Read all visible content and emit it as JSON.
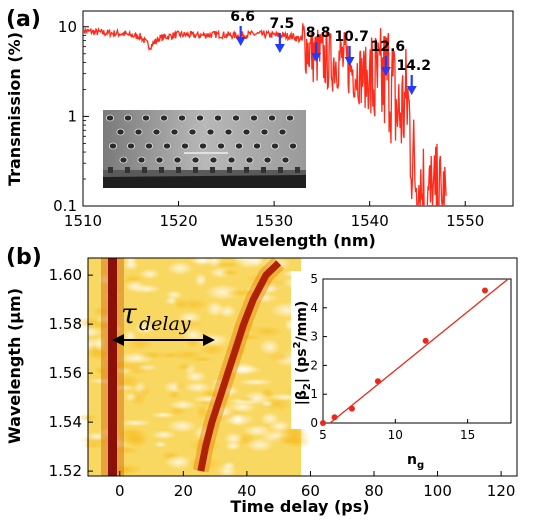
{
  "chart_data": [
    {
      "panel": "(a)",
      "type": "line",
      "xlabel": "Wavelength (nm)",
      "ylabel": "Transmission (%)",
      "xlim": [
        1510,
        1555
      ],
      "ylim": [
        0.1,
        15
      ],
      "yscale": "log",
      "xticks": [
        "1510",
        "1520",
        "1530",
        "1540",
        "1550"
      ],
      "yticks": [
        {
          "value": 10,
          "label": "10"
        },
        {
          "value": 1,
          "label": "1"
        },
        {
          "value": 0.1,
          "label": "0.1"
        }
      ],
      "line_color": "#ff2a1a",
      "x": [
        1510,
        1512,
        1514,
        1515,
        1516,
        1517,
        1518,
        1520,
        1522,
        1524,
        1526,
        1528,
        1530,
        1532,
        1533,
        1534,
        1535,
        1536,
        1537,
        1538,
        1539,
        1540,
        1541,
        1542,
        1543,
        1544,
        1544.5,
        1545,
        1546,
        1547,
        1548
      ],
      "y": [
        9.0,
        8.6,
        8.4,
        8.0,
        7.8,
        6.0,
        7.5,
        8.2,
        8.0,
        8.2,
        8.0,
        8.3,
        8.1,
        7.8,
        7.0,
        5.0,
        4.5,
        4.0,
        4.5,
        3.5,
        3.0,
        2.5,
        2.0,
        3.0,
        1.0,
        1.5,
        0.3,
        0.2,
        0.12,
        0.1,
        0.1
      ],
      "annotations": [
        {
          "label": "6.6",
          "x": 1526.5,
          "arrow_color": "#1f3cff"
        },
        {
          "label": "7.5",
          "x": 1530.6,
          "arrow_color": "#1f3cff"
        },
        {
          "label": "8.8",
          "x": 1534.4,
          "arrow_color": "#1f3cff"
        },
        {
          "label": "10.7",
          "x": 1537.9,
          "arrow_color": "#1f3cff"
        },
        {
          "label": "12.6",
          "x": 1541.7,
          "arrow_color": "#1f3cff"
        },
        {
          "label": "14.2",
          "x": 1544.4,
          "arrow_color": "#1f3cff"
        }
      ]
    },
    {
      "panel": "(b)",
      "type": "heatmap",
      "xlabel": "Time delay (ps)",
      "ylabel": "Wavelength (μm)",
      "xlim": [
        -10,
        125
      ],
      "ylim": [
        1.518,
        1.607
      ],
      "xticks": [
        "0",
        "20",
        "40",
        "60",
        "80",
        "100",
        "120"
      ],
      "yticks": [
        "1.52",
        "1.54",
        "1.56",
        "1.58",
        "1.60"
      ],
      "annotation": "τ_delay",
      "reference_pulse_delay_ps": 0,
      "delayed_pulse_curve": {
        "wavelength_um": [
          1.52,
          1.53,
          1.54,
          1.55,
          1.56,
          1.57,
          1.58,
          1.59,
          1.6,
          1.605
        ],
        "delay_ps": [
          25.5,
          27,
          29,
          31.5,
          34,
          36.5,
          39,
          42,
          46,
          50
        ]
      }
    },
    {
      "panel": "(b) inset",
      "type": "scatter",
      "xlabel": "n",
      "xlabel_subscript": "g",
      "ylabel": "|β",
      "ylabel_sub": "2",
      "ylabel_units": "| (ps",
      "ylabel_sup": "2",
      "ylabel_tail": "/mm)",
      "xlim": [
        5,
        18
      ],
      "ylim": [
        0,
        5
      ],
      "xticks": [
        "5",
        "10",
        "15"
      ],
      "yticks": [
        "0",
        "1",
        "2",
        "3",
        "4",
        "5"
      ],
      "x": [
        5.0,
        5.8,
        7.0,
        8.8,
        12.1,
        16.2
      ],
      "y": [
        0.0,
        0.2,
        0.5,
        1.45,
        2.85,
        4.6
      ],
      "fit_line": {
        "x": [
          5.0,
          17.8
        ],
        "y": [
          -0.2,
          5.0
        ]
      },
      "color": "#e8291b"
    }
  ]
}
